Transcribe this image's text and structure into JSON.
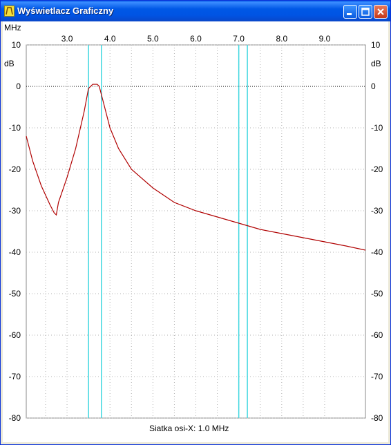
{
  "window": {
    "title": "Wyświetlacz Graficzny",
    "buttons": {
      "minimize": "minimize-icon",
      "maximize": "maximize-icon",
      "close": "close-icon"
    }
  },
  "plot": {
    "x_unit": "MHz",
    "y_unit": "dB",
    "grid_caption": "Siatka osi-X: 1.0 MHz",
    "colors": {
      "curve": "#b00000",
      "markers": "#3fd7e0",
      "grid": "#b0b0b0",
      "zero_line": "#000000"
    }
  },
  "chart_data": {
    "type": "line",
    "xlabel": "MHz",
    "ylabel": "dB",
    "xlim": [
      2.05,
      9.95
    ],
    "ylim": [
      -80,
      10
    ],
    "x_ticks": [
      "3.0",
      "4.0",
      "5.0",
      "6.0",
      "7.0",
      "8.0",
      "9.0"
    ],
    "y_ticks": [
      "10",
      "0",
      "-10",
      "-20",
      "-30",
      "-40",
      "-50",
      "-60",
      "-70",
      "-80"
    ],
    "grid": true,
    "reference_line_y": 0,
    "band_markers": [
      3.5,
      3.8,
      7.0,
      7.2
    ],
    "series": [
      {
        "x": [
          2.05,
          2.2,
          2.4,
          2.6,
          2.7,
          2.75,
          2.8,
          3.0,
          3.2,
          3.4,
          3.5,
          3.6,
          3.65,
          3.7,
          3.75,
          3.8,
          3.9,
          4.0,
          4.2,
          4.5,
          5.0,
          5.5,
          6.0,
          6.5,
          7.0,
          7.5,
          8.0,
          8.5,
          9.0,
          9.5,
          9.95
        ],
        "y": [
          -12,
          -18,
          -24,
          -28.5,
          -30.5,
          -31,
          -28,
          -22,
          -15,
          -6,
          -0.5,
          0.5,
          0.5,
          0.5,
          0,
          -2,
          -6,
          -10,
          -15,
          -20,
          -24.5,
          -28,
          -30,
          -31.5,
          -33,
          -34.5,
          -35.5,
          -36.5,
          -37.5,
          -38.5,
          -39.5
        ]
      }
    ]
  }
}
